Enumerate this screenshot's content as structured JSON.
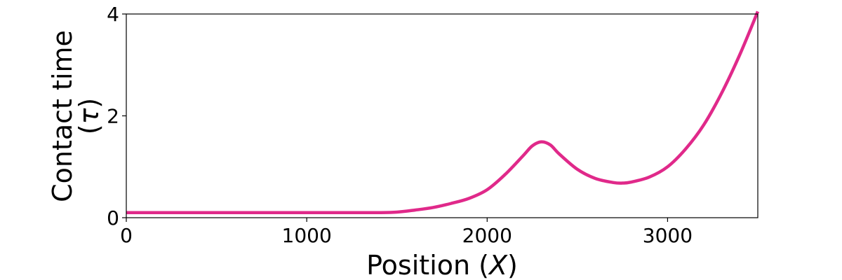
{
  "chart_data": {
    "type": "line",
    "xlabel": {
      "prefix": "Position (",
      "symbol": "X",
      "suffix": ")"
    },
    "ylabel": {
      "line1": "Contact time",
      "line2_prefix": "(",
      "line2_symbol": "τ",
      "line2_suffix": ")"
    },
    "xlim": [
      0,
      3500
    ],
    "ylim": [
      0,
      4
    ],
    "x_ticks": [
      {
        "value": 0,
        "label": "0"
      },
      {
        "value": 1000,
        "label": "1000"
      },
      {
        "value": 2000,
        "label": "2000"
      },
      {
        "value": 3000,
        "label": "3000"
      }
    ],
    "y_ticks": [
      {
        "value": 0,
        "label": "0"
      },
      {
        "value": 2,
        "label": "2"
      },
      {
        "value": 4,
        "label": "4"
      }
    ],
    "grid": false,
    "series": [
      {
        "color": "#e0298a",
        "x": [
          0,
          200,
          400,
          600,
          800,
          1000,
          1200,
          1400,
          1500,
          1600,
          1700,
          1800,
          1900,
          2000,
          2100,
          2200,
          2250,
          2300,
          2350,
          2400,
          2500,
          2600,
          2700,
          2750,
          2800,
          2900,
          3000,
          3100,
          3200,
          3300,
          3400,
          3500
        ],
        "y": [
          0.1,
          0.1,
          0.1,
          0.1,
          0.1,
          0.1,
          0.1,
          0.1,
          0.11,
          0.15,
          0.2,
          0.28,
          0.38,
          0.55,
          0.85,
          1.22,
          1.41,
          1.49,
          1.43,
          1.25,
          0.95,
          0.77,
          0.69,
          0.68,
          0.7,
          0.8,
          1.0,
          1.35,
          1.82,
          2.45,
          3.2,
          4.05
        ]
      }
    ]
  }
}
